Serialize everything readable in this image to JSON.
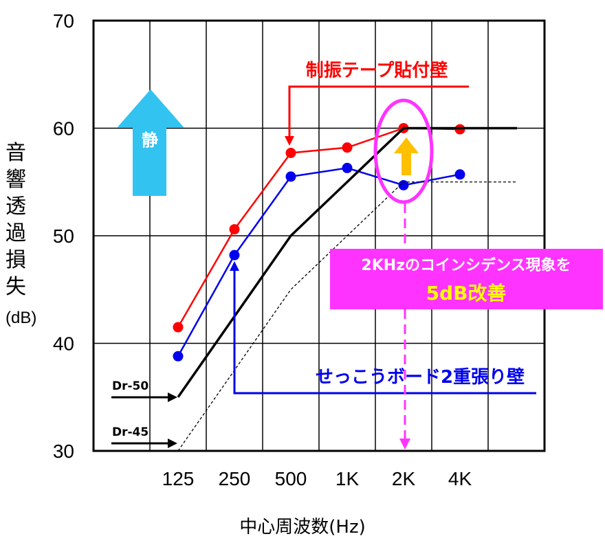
{
  "chart_data": {
    "type": "line",
    "title": "",
    "xlabel": "中心周波数(Hz)",
    "ylabel": "音響透過損失",
    "ylabel_unit": "(dB)",
    "ylim": [
      30,
      70
    ],
    "yticks": [
      "30",
      "40",
      "50",
      "60",
      "70"
    ],
    "categories": [
      "125",
      "250",
      "500",
      "1K",
      "2K",
      "4K"
    ],
    "grid": true,
    "series": [
      {
        "name": "制振テープ貼付壁",
        "color": "#ff0000",
        "marker": "circle",
        "values": [
          41.5,
          50.6,
          57.7,
          58.2,
          60.0,
          59.9
        ]
      },
      {
        "name": "せっこうボード2重張り壁",
        "color": "#0000ee",
        "marker": "circle",
        "values": [
          38.8,
          48.2,
          55.5,
          56.3,
          54.7,
          55.7
        ]
      },
      {
        "name": "Dr-50",
        "color": "#000000",
        "style": "solid",
        "values": [
          35,
          42.5,
          50,
          55,
          60,
          60
        ]
      },
      {
        "name": "Dr-45",
        "color": "#000000",
        "style": "dashed",
        "values": [
          30,
          37.5,
          45,
          50,
          55,
          55
        ]
      }
    ],
    "annotations": [
      {
        "text": "静",
        "type": "up-arrow",
        "color": "#33c3f0"
      },
      {
        "text": "制振テープ貼付壁",
        "color": "#ff0000"
      },
      {
        "text": "せっこうボード2重張り壁",
        "color": "#0000ee"
      },
      {
        "text": "Dr-50"
      },
      {
        "text": "Dr-45"
      },
      {
        "text": "2KHzのコインシデンス現象を",
        "color": "#ffffff",
        "background": "#ff33ff"
      },
      {
        "text": "5dB改善",
        "color": "#ffff00",
        "background": "#ff33ff"
      }
    ]
  },
  "labels": {
    "quiet": "静",
    "red_series": "制振テープ貼付壁",
    "blue_series": "せっこうボード2重張り壁",
    "dr50": "Dr-50",
    "dr45": "Dr-45",
    "box_line1": "2KHzのコインシデンス現象を",
    "box_line2": "5dB改善",
    "ylabel_chars": [
      "音",
      "響",
      "透",
      "過",
      "損",
      "失"
    ],
    "yunit": "(dB)",
    "xlabel": "中心周波数(Hz)"
  },
  "colors": {
    "red": "#ff0000",
    "blue": "#0000ee",
    "magenta": "#ff33ff",
    "quiet_arrow": "#33c3f0",
    "improve_arrow": "#ffc000"
  }
}
